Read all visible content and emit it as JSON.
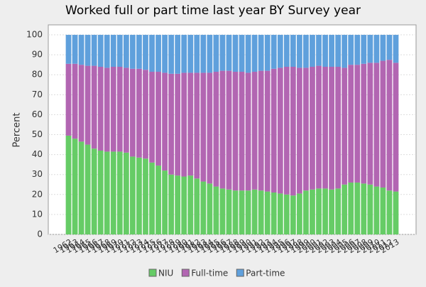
{
  "chart_data": {
    "type": "stacked_bar",
    "title": "Worked full or part time last year BY Survey year",
    "y_label": "Percent",
    "categories": [
      "1962",
      "1963",
      "1964",
      "1965",
      "1966",
      "1967",
      "1968",
      "1969",
      "1970",
      "1971",
      "1972",
      "1973",
      "1974",
      "1975",
      "1976",
      "1977",
      "1978",
      "1979",
      "1980",
      "1981",
      "1982",
      "1983",
      "1984",
      "1985",
      "1986",
      "1987",
      "1988",
      "1989",
      "1990",
      "1991",
      "1992",
      "1993",
      "1994",
      "1995",
      "1996",
      "1997",
      "1998",
      "1999",
      "2000",
      "2001",
      "2002",
      "2003",
      "2004",
      "2005",
      "2006",
      "2007",
      "2008",
      "2009",
      "2010",
      "2011",
      "2012",
      "2013"
    ],
    "series": [
      {
        "name": "NIU",
        "color": "#66cc66",
        "values": [
          49.5,
          48,
          46.5,
          45,
          43,
          42,
          41.5,
          41.5,
          41.5,
          41,
          39,
          38.5,
          38,
          36,
          34.5,
          32,
          30,
          29.5,
          29,
          29.5,
          28,
          26.5,
          25.5,
          24,
          23,
          22.5,
          22,
          22,
          22,
          22.5,
          22,
          21.5,
          21,
          20.5,
          20,
          19.5,
          20.5,
          22,
          22.5,
          23,
          23,
          22.5,
          23,
          25,
          26,
          26,
          25.5,
          25,
          24,
          23.5,
          22,
          21.5
        ]
      },
      {
        "name": "Full-time",
        "color": "#b266b2",
        "values": [
          36,
          37.5,
          38.5,
          39.5,
          41.5,
          42,
          42,
          42.5,
          42.5,
          42.5,
          44,
          44.5,
          44.5,
          45.5,
          47,
          49,
          50.5,
          51,
          52,
          51.5,
          53,
          54.5,
          55.5,
          57.5,
          59,
          59.5,
          59.5,
          59.5,
          59,
          59,
          60,
          60.5,
          62,
          63,
          64,
          64.5,
          63,
          61.5,
          61.5,
          61.5,
          61,
          61.5,
          61,
          58.5,
          59,
          59,
          60,
          61,
          62,
          63.5,
          65.5,
          64.5
        ]
      },
      {
        "name": "Part-time",
        "color": "#5fa0dc",
        "values": [
          14.5,
          14.5,
          15,
          15.5,
          15.5,
          16,
          16.5,
          16,
          16,
          16.5,
          17,
          17,
          17.5,
          18.5,
          18.5,
          19,
          19.5,
          19.5,
          19,
          19,
          19,
          19,
          19,
          18.5,
          18,
          18,
          18.5,
          18.5,
          19,
          18.5,
          18,
          18,
          17,
          16.5,
          16,
          16,
          16.5,
          16.5,
          16,
          15.5,
          16,
          16,
          16,
          16.5,
          15,
          15,
          14.5,
          14,
          14,
          13,
          12.5,
          14
        ]
      }
    ],
    "ylim": [
      0,
      105
    ],
    "yticks": [
      0,
      10,
      20,
      30,
      40,
      50,
      60,
      70,
      80,
      90,
      100
    ],
    "grid": true
  }
}
